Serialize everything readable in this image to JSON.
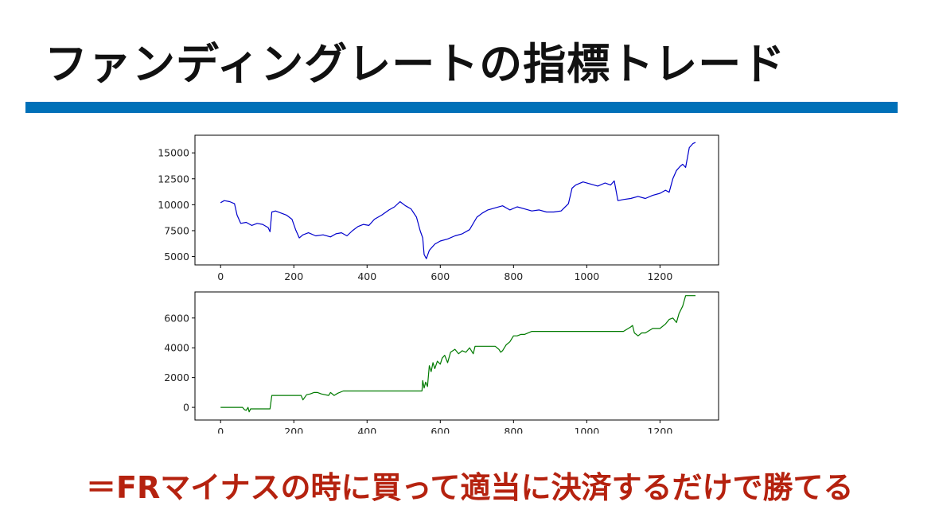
{
  "slide": {
    "title": "ファンディングレートの指標トレード",
    "conclusion": "＝FRマイナスの時に買って適当に決済するだけで勝てる",
    "colors": {
      "accent_bar": "#0070b8",
      "conclusion": "#b5220f",
      "title": "#111111"
    }
  },
  "chart_data": [
    {
      "type": "line",
      "title": "",
      "xlabel": "",
      "ylabel": "",
      "xlim": [
        -70,
        1360
      ],
      "ylim": [
        4200,
        16700
      ],
      "xticks": [
        0,
        200,
        400,
        600,
        800,
        1000,
        1200
      ],
      "xtick_labels": [
        "0",
        "200",
        "400",
        "600",
        "800",
        "1000",
        "1200"
      ],
      "yticks": [
        5000,
        7500,
        10000,
        12500,
        15000
      ],
      "ytick_labels": [
        "5000",
        "7500",
        "10000",
        "12500",
        "15000"
      ],
      "grid": false,
      "legend": "none",
      "series": [
        {
          "color": "#0000cc",
          "x": [
            0,
            10,
            25,
            38,
            45,
            55,
            70,
            85,
            100,
            115,
            130,
            135,
            140,
            150,
            165,
            180,
            195,
            205,
            215,
            225,
            240,
            260,
            280,
            300,
            315,
            330,
            345,
            360,
            375,
            390,
            405,
            420,
            440,
            460,
            475,
            490,
            505,
            520,
            535,
            545,
            552,
            556,
            562,
            570,
            585,
            600,
            620,
            640,
            660,
            680,
            700,
            715,
            730,
            750,
            770,
            790,
            810,
            830,
            850,
            870,
            890,
            910,
            930,
            950,
            960,
            970,
            990,
            1010,
            1030,
            1050,
            1065,
            1075,
            1085,
            1100,
            1120,
            1140,
            1160,
            1180,
            1200,
            1215,
            1225,
            1235,
            1245,
            1255,
            1262,
            1270,
            1280,
            1290,
            1297
          ],
          "y": [
            10200,
            10400,
            10300,
            10100,
            9000,
            8200,
            8300,
            8000,
            8200,
            8100,
            7800,
            7400,
            9300,
            9400,
            9200,
            9000,
            8600,
            7600,
            6800,
            7100,
            7300,
            7000,
            7100,
            6900,
            7200,
            7300,
            7000,
            7500,
            7900,
            8100,
            8000,
            8600,
            9000,
            9500,
            9800,
            10300,
            9900,
            9600,
            8800,
            7500,
            6800,
            5200,
            4800,
            5600,
            6200,
            6500,
            6700,
            7000,
            7200,
            7600,
            8800,
            9200,
            9500,
            9700,
            9900,
            9500,
            9800,
            9600,
            9400,
            9500,
            9300,
            9300,
            9400,
            10100,
            11600,
            11900,
            12200,
            12000,
            11800,
            12100,
            11900,
            12300,
            10400,
            10500,
            10600,
            10800,
            10600,
            10900,
            11100,
            11400,
            11200,
            12500,
            13300,
            13700,
            13900,
            13600,
            15500,
            15900,
            16000
          ]
        }
      ]
    },
    {
      "type": "line",
      "title": "",
      "xlabel": "",
      "ylabel": "",
      "xlim": [
        -70,
        1360
      ],
      "ylim": [
        -850,
        7750
      ],
      "xticks": [
        0,
        200,
        400,
        600,
        800,
        1000,
        1200
      ],
      "xtick_labels": [
        "0",
        "200",
        "400",
        "600",
        "800",
        "1000",
        "1200"
      ],
      "yticks": [
        0,
        2000,
        4000,
        6000
      ],
      "ytick_labels": [
        "0",
        "2000",
        "4000",
        "6000"
      ],
      "grid": false,
      "legend": "none",
      "series": [
        {
          "color": "#007a00",
          "x": [
            0,
            60,
            65,
            70,
            75,
            78,
            82,
            90,
            135,
            140,
            220,
            225,
            235,
            245,
            255,
            265,
            275,
            295,
            300,
            310,
            320,
            335,
            345,
            400,
            500,
            550,
            552,
            556,
            560,
            565,
            570,
            575,
            580,
            585,
            592,
            600,
            605,
            612,
            620,
            628,
            640,
            650,
            660,
            670,
            680,
            690,
            695,
            700,
            720,
            740,
            750,
            760,
            765,
            770,
            780,
            790,
            800,
            810,
            820,
            830,
            850,
            900,
            1000,
            1100,
            1120,
            1125,
            1130,
            1140,
            1150,
            1160,
            1180,
            1200,
            1215,
            1225,
            1235,
            1245,
            1252,
            1262,
            1270,
            1297
          ],
          "y": [
            0,
            0,
            -150,
            -200,
            0,
            -300,
            -100,
            -100,
            -100,
            800,
            800,
            500,
            850,
            900,
            1000,
            1000,
            900,
            800,
            1000,
            800,
            950,
            1100,
            1100,
            1100,
            1100,
            1100,
            1800,
            1300,
            1700,
            1400,
            2800,
            2400,
            3000,
            2600,
            3100,
            2900,
            3300,
            3500,
            3000,
            3700,
            3900,
            3600,
            3800,
            3700,
            4000,
            3600,
            4100,
            4100,
            4100,
            4100,
            4100,
            3900,
            3700,
            3800,
            4200,
            4400,
            4800,
            4800,
            4900,
            4900,
            5100,
            5100,
            5100,
            5100,
            5400,
            5500,
            5000,
            4800,
            5000,
            5000,
            5300,
            5300,
            5600,
            5900,
            6000,
            5700,
            6300,
            6800,
            7500,
            7500
          ]
        }
      ]
    }
  ]
}
